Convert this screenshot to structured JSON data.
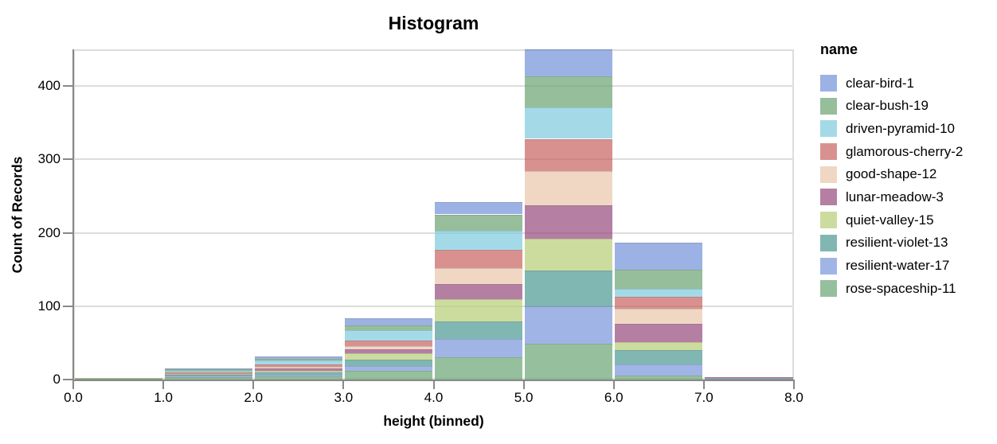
{
  "title": "Histogram",
  "chart_data": {
    "type": "bar",
    "stacked": true,
    "title": "Histogram",
    "xlabel": "height (binned)",
    "ylabel": "Count of Records",
    "legend_title": "name",
    "legend_position": "right",
    "grid": true,
    "xlim": [
      0,
      8
    ],
    "ylim": [
      0,
      450
    ],
    "bin_edges": [
      0,
      1,
      2,
      3,
      4,
      5,
      6,
      7,
      8
    ],
    "x_tick_labels": [
      "0.0",
      "1.0",
      "2.0",
      "3.0",
      "4.0",
      "5.0",
      "6.0",
      "7.0",
      "8.0"
    ],
    "y_ticks": [
      0,
      100,
      200,
      300,
      400
    ],
    "y_tick_labels": [
      "0",
      "100",
      "200",
      "300",
      "400"
    ],
    "fill_opacity": 0.7,
    "series": [
      {
        "name": "clear-bird-1",
        "color": "#7291D8",
        "values": [
          0,
          1,
          3,
          10,
          17,
          37,
          36,
          0
        ]
      },
      {
        "name": "clear-bush-19",
        "color": "#69A371",
        "values": [
          0,
          2,
          2,
          7,
          22,
          42,
          26,
          0
        ]
      },
      {
        "name": "driven-pyramid-10",
        "color": "#7ECBDE",
        "values": [
          0,
          2,
          5,
          14,
          26,
          43,
          11,
          0
        ]
      },
      {
        "name": "glamorous-cherry-2",
        "color": "#C8625F",
        "values": [
          0,
          2,
          4,
          7,
          25,
          44,
          16,
          0
        ]
      },
      {
        "name": "good-shape-12",
        "color": "#E9C6AB",
        "values": [
          0,
          0,
          2,
          5,
          22,
          46,
          21,
          0
        ]
      },
      {
        "name": "lunar-meadow-3",
        "color": "#96487E",
        "values": [
          0,
          0,
          3,
          5,
          21,
          46,
          25,
          1
        ]
      },
      {
        "name": "quiet-valley-15",
        "color": "#B6CD76",
        "values": [
          1,
          1,
          2,
          9,
          30,
          43,
          11,
          0
        ]
      },
      {
        "name": "resilient-violet-13",
        "color": "#4C9991",
        "values": [
          0,
          2,
          3,
          9,
          24,
          49,
          19,
          0
        ]
      },
      {
        "name": "resilient-water-17",
        "color": "#7796DC",
        "values": [
          0,
          2,
          3,
          6,
          25,
          51,
          16,
          1
        ]
      },
      {
        "name": "rose-spaceship-11",
        "color": "#6AA574",
        "values": [
          1,
          3,
          4,
          12,
          30,
          49,
          5,
          1
        ]
      }
    ]
  },
  "style": {
    "grid_color": "#dddddd",
    "domain_color": "#888888",
    "view_border_color": "#dddddd",
    "text_color": "#000000",
    "background": "#ffffff"
  }
}
